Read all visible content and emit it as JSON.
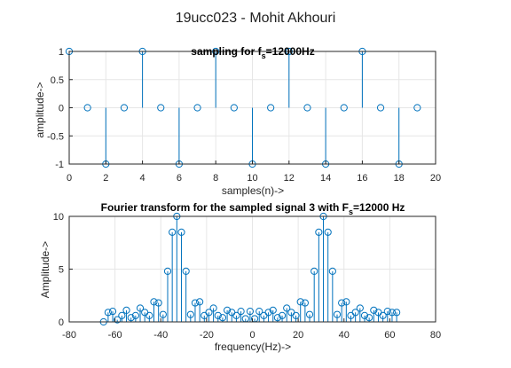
{
  "figure": {
    "suptitle": "19ucc023 - Mohit Akhouri",
    "stem_color": "#0072BD"
  },
  "chart_data": [
    {
      "type": "stem",
      "title_main": "sampling for f",
      "title_sub": "s",
      "title_rest": "=12000Hz",
      "xlabel": "samples(n)->",
      "ylabel": "amplitude->",
      "xlim": [
        0,
        20
      ],
      "ylim": [
        -1,
        1
      ],
      "xticks": [
        "0",
        "2",
        "4",
        "6",
        "8",
        "10",
        "12",
        "14",
        "16",
        "18",
        "20"
      ],
      "yticks": [
        "-1",
        "-0.5",
        "0",
        "0.5",
        "1"
      ],
      "grid": true,
      "x": [
        0,
        1,
        2,
        3,
        4,
        5,
        6,
        7,
        8,
        9,
        10,
        11,
        12,
        13,
        14,
        15,
        16,
        17,
        18,
        19
      ],
      "y": [
        1,
        0,
        -1,
        0,
        1,
        0,
        -1,
        0,
        1,
        0,
        -1,
        0,
        1,
        0,
        -1,
        0,
        1,
        0,
        -1,
        0
      ]
    },
    {
      "type": "stem",
      "title_main": "Fourier transform for the sampled signal 3 with F",
      "title_sub": "s",
      "title_rest": "=12000 Hz",
      "xlabel": "frequency(Hz)->",
      "ylabel": "Amplitude->",
      "xlim": [
        -80,
        80
      ],
      "ylim": [
        0,
        10
      ],
      "xticks": [
        "-80",
        "-60",
        "-40",
        "-20",
        "0",
        "20",
        "40",
        "60",
        "80"
      ],
      "yticks": [
        "0",
        "5",
        "10"
      ],
      "grid": true,
      "x": [
        -65,
        -63,
        -61,
        -59,
        -57,
        -55,
        -53,
        -51,
        -49,
        -47,
        -45,
        -43,
        -41,
        -39,
        -37,
        -35,
        -33,
        -31,
        -29,
        -27,
        -25,
        -23,
        -21,
        -19,
        -17,
        -15,
        -13,
        -11,
        -9,
        -7,
        -5,
        -3,
        -1,
        1,
        3,
        5,
        7,
        9,
        11,
        13,
        15,
        17,
        19,
        21,
        23,
        25,
        27,
        29,
        31,
        33,
        35,
        37,
        39,
        41,
        43,
        45,
        47,
        49,
        51,
        53,
        55,
        57,
        59,
        61,
        63
      ],
      "y": [
        0.0,
        0.9,
        1.0,
        0.2,
        0.6,
        1.1,
        0.4,
        0.6,
        1.3,
        0.9,
        0.6,
        1.9,
        1.8,
        0.7,
        4.8,
        8.5,
        10.0,
        8.5,
        4.8,
        0.7,
        1.8,
        1.9,
        0.6,
        0.9,
        1.3,
        0.6,
        0.4,
        1.1,
        0.9,
        0.6,
        1.0,
        0.3,
        1.0,
        0.3,
        1.0,
        0.6,
        0.9,
        1.1,
        0.4,
        0.6,
        1.3,
        0.9,
        0.6,
        1.9,
        1.8,
        0.7,
        4.8,
        8.5,
        10.0,
        8.5,
        4.8,
        0.7,
        1.8,
        1.9,
        0.6,
        0.9,
        1.3,
        0.6,
        0.4,
        1.1,
        0.9,
        0.6,
        1.0,
        0.9,
        0.9
      ]
    }
  ]
}
